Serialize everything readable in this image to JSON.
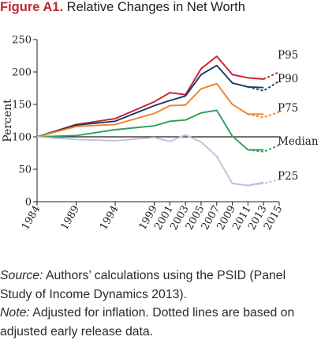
{
  "figure": {
    "label": "Figure A1.",
    "title": "Relative Changes in Net Worth"
  },
  "chart_data": {
    "type": "line",
    "title": "Relative Changes in Net Worth",
    "xlabel": "",
    "ylabel": "Percent",
    "x": [
      1984,
      1989,
      1994,
      1999,
      2001,
      2003,
      2005,
      2007,
      2009,
      2011,
      2013,
      2015
    ],
    "ylim": [
      0,
      250
    ],
    "yticks": [
      0,
      50,
      100,
      150,
      200,
      250
    ],
    "reference_line": 100,
    "grid": false,
    "legend": "labels at line ends (right)",
    "series": [
      {
        "name": "P95",
        "color": "#c8202f",
        "points": [
          [
            1984,
            100
          ],
          [
            1989,
            119
          ],
          [
            1994,
            128
          ],
          [
            1999,
            154
          ],
          [
            2001,
            168
          ],
          [
            2003,
            165
          ],
          [
            2005,
            205
          ],
          [
            2007,
            224
          ],
          [
            2009,
            196
          ],
          [
            2011,
            191
          ],
          [
            2013,
            189
          ]
        ],
        "dotted": [
          [
            2013,
            189
          ],
          [
            2015,
            200
          ]
        ]
      },
      {
        "name": "P90",
        "color": "#163a68",
        "points": [
          [
            1984,
            100
          ],
          [
            1989,
            118
          ],
          [
            1994,
            124
          ],
          [
            1999,
            148
          ],
          [
            2001,
            156
          ],
          [
            2003,
            163
          ],
          [
            2005,
            196
          ],
          [
            2007,
            210
          ],
          [
            2009,
            183
          ],
          [
            2011,
            177
          ],
          [
            2013,
            176
          ]
        ],
        "dotted": [
          [
            2011,
            177
          ],
          [
            2013,
            171
          ],
          [
            2015,
            186
          ]
        ]
      },
      {
        "name": "P75",
        "color": "#f0822d",
        "points": [
          [
            1984,
            100
          ],
          [
            1989,
            116
          ],
          [
            1994,
            119
          ],
          [
            1999,
            136
          ],
          [
            2001,
            148
          ],
          [
            2003,
            149
          ],
          [
            2005,
            174
          ],
          [
            2007,
            182
          ],
          [
            2009,
            150
          ],
          [
            2011,
            135
          ],
          [
            2013,
            135
          ]
        ],
        "dotted": [
          [
            2011,
            135
          ],
          [
            2013,
            130
          ],
          [
            2015,
            138
          ]
        ]
      },
      {
        "name": "Median",
        "color": "#2aa05a",
        "points": [
          [
            1984,
            100
          ],
          [
            1989,
            102
          ],
          [
            1994,
            111
          ],
          [
            1999,
            117
          ],
          [
            2001,
            124
          ],
          [
            2003,
            126
          ],
          [
            2005,
            137
          ],
          [
            2007,
            141
          ],
          [
            2009,
            101
          ],
          [
            2011,
            80
          ],
          [
            2013,
            80
          ]
        ],
        "dotted": [
          [
            2011,
            80
          ],
          [
            2013,
            77
          ],
          [
            2015,
            87
          ]
        ]
      },
      {
        "name": "P25",
        "color": "#c4bede",
        "points": [
          [
            1984,
            100
          ],
          [
            1989,
            96
          ],
          [
            1994,
            94
          ],
          [
            1999,
            99
          ],
          [
            2001,
            93
          ],
          [
            2003,
            103
          ],
          [
            2005,
            92
          ],
          [
            2007,
            70
          ],
          [
            2009,
            28
          ],
          [
            2011,
            25
          ],
          [
            2013,
            30
          ]
        ],
        "dotted": [
          [
            2011,
            25
          ],
          [
            2013,
            28
          ],
          [
            2015,
            34
          ]
        ]
      }
    ]
  },
  "notes": {
    "source_label": "Source:",
    "source_text": " Authors’ calculations using the PSID (Panel Study of Income Dynamics 2013).",
    "note_label": "Note:",
    "note_text": " Adjusted for inflation. Dotted lines are based on adjusted early release data."
  }
}
